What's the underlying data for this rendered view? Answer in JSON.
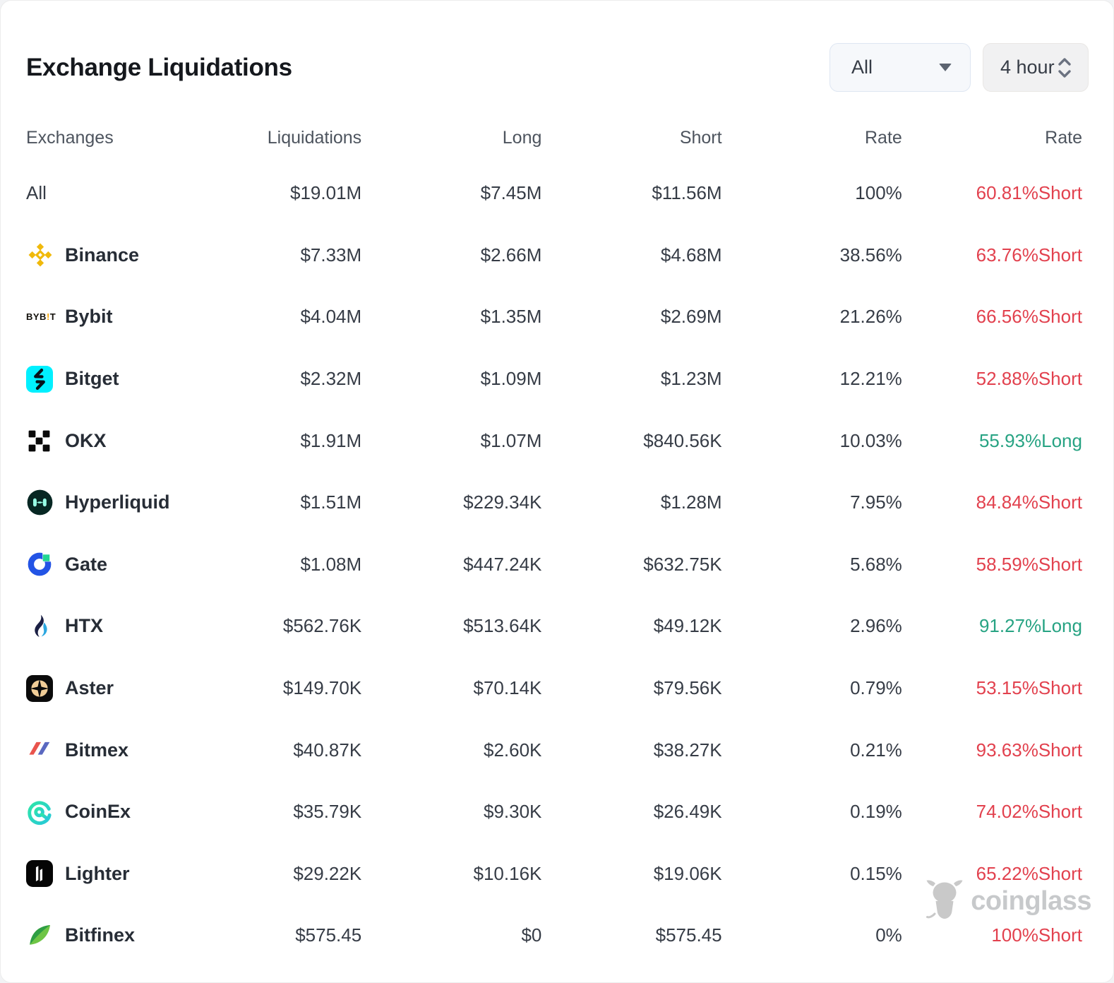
{
  "header": {
    "title": "Exchange Liquidations",
    "filters": {
      "exchange_selected": "All",
      "interval_selected": "4 hour"
    }
  },
  "table": {
    "columns": [
      "Exchanges",
      "Liquidations",
      "Long",
      "Short",
      "Rate",
      "Rate"
    ],
    "rows": [
      {
        "exchange": "All",
        "icon": null,
        "liquidations": "$19.01M",
        "long": "$7.45M",
        "short": "$11.56M",
        "rate": "100%",
        "bias_rate": "60.81%Short",
        "bias": "short"
      },
      {
        "exchange": "Binance",
        "icon": "binance",
        "liquidations": "$7.33M",
        "long": "$2.66M",
        "short": "$4.68M",
        "rate": "38.56%",
        "bias_rate": "63.76%Short",
        "bias": "short"
      },
      {
        "exchange": "Bybit",
        "icon": "bybit",
        "liquidations": "$4.04M",
        "long": "$1.35M",
        "short": "$2.69M",
        "rate": "21.26%",
        "bias_rate": "66.56%Short",
        "bias": "short"
      },
      {
        "exchange": "Bitget",
        "icon": "bitget",
        "liquidations": "$2.32M",
        "long": "$1.09M",
        "short": "$1.23M",
        "rate": "12.21%",
        "bias_rate": "52.88%Short",
        "bias": "short"
      },
      {
        "exchange": "OKX",
        "icon": "okx",
        "liquidations": "$1.91M",
        "long": "$1.07M",
        "short": "$840.56K",
        "rate": "10.03%",
        "bias_rate": "55.93%Long",
        "bias": "long"
      },
      {
        "exchange": "Hyperliquid",
        "icon": "hyperliquid",
        "liquidations": "$1.51M",
        "long": "$229.34K",
        "short": "$1.28M",
        "rate": "7.95%",
        "bias_rate": "84.84%Short",
        "bias": "short"
      },
      {
        "exchange": "Gate",
        "icon": "gate",
        "liquidations": "$1.08M",
        "long": "$447.24K",
        "short": "$632.75K",
        "rate": "5.68%",
        "bias_rate": "58.59%Short",
        "bias": "short"
      },
      {
        "exchange": "HTX",
        "icon": "htx",
        "liquidations": "$562.76K",
        "long": "$513.64K",
        "short": "$49.12K",
        "rate": "2.96%",
        "bias_rate": "91.27%Long",
        "bias": "long"
      },
      {
        "exchange": "Aster",
        "icon": "aster",
        "liquidations": "$149.70K",
        "long": "$70.14K",
        "short": "$79.56K",
        "rate": "0.79%",
        "bias_rate": "53.15%Short",
        "bias": "short"
      },
      {
        "exchange": "Bitmex",
        "icon": "bitmex",
        "liquidations": "$40.87K",
        "long": "$2.60K",
        "short": "$38.27K",
        "rate": "0.21%",
        "bias_rate": "93.63%Short",
        "bias": "short"
      },
      {
        "exchange": "CoinEx",
        "icon": "coinex",
        "liquidations": "$35.79K",
        "long": "$9.30K",
        "short": "$26.49K",
        "rate": "0.19%",
        "bias_rate": "74.02%Short",
        "bias": "short"
      },
      {
        "exchange": "Lighter",
        "icon": "lighter",
        "liquidations": "$29.22K",
        "long": "$10.16K",
        "short": "$19.06K",
        "rate": "0.15%",
        "bias_rate": "65.22%Short",
        "bias": "short"
      },
      {
        "exchange": "Bitfinex",
        "icon": "bitfinex",
        "liquidations": "$575.45",
        "long": "$0",
        "short": "$575.45",
        "rate": "0%",
        "bias_rate": "100%Short",
        "bias": "short"
      }
    ]
  },
  "watermark": {
    "text": "coinglass"
  },
  "colors": {
    "short": "#e2414e",
    "long": "#27a383"
  }
}
